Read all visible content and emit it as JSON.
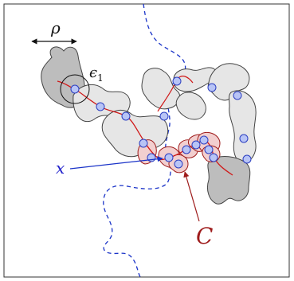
{
  "labels": {
    "rho": "ρ",
    "epsilon1": "ϵ",
    "epsilon1_sub": "1",
    "x": "x",
    "C": "C"
  },
  "colors": {
    "frame": "#333333",
    "blob_fill": "#e6e6e6",
    "blob_fill_dark": "#bdbdbd",
    "blob_stroke": "#444444",
    "highlight_fill": "#f2cfcf",
    "highlight_stroke": "#9e1b1b",
    "path_red": "#d01818",
    "dashed_blue": "#1a33c8",
    "node_fill": "#b8c4f6",
    "node_stroke": "#2b3ec0",
    "x_label": "#2222cc",
    "C_label": "#9e1b1b",
    "black": "#111111"
  }
}
